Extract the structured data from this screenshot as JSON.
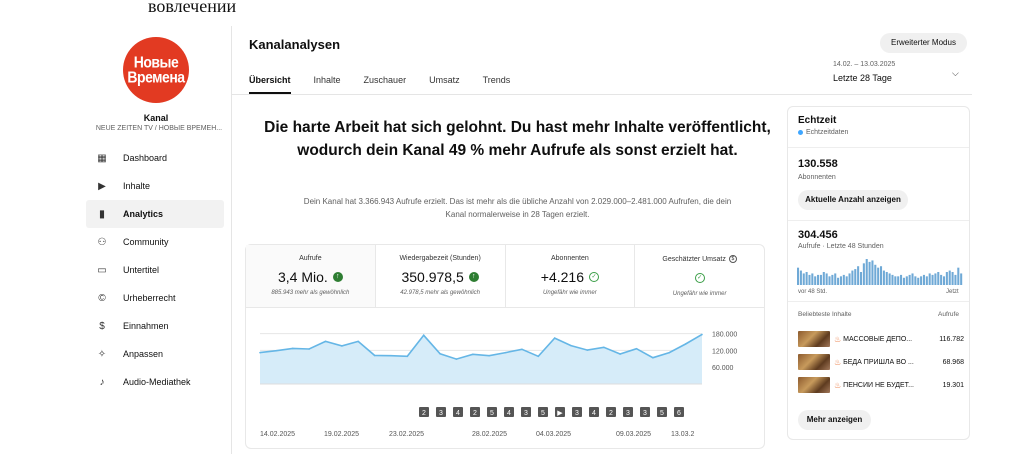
{
  "caption": "вовлечении",
  "channel": {
    "logo_line1": "Новые",
    "logo_line2": "Времена",
    "name": "Kanal",
    "subtitle": "NEUE ZEITEN TV / НОВЫЕ ВРЕМЕН..."
  },
  "sidebar": {
    "items": [
      {
        "label": "Dashboard",
        "icon": "dashboard-icon",
        "glyph": "▦"
      },
      {
        "label": "Inhalte",
        "icon": "content-icon",
        "glyph": "▶"
      },
      {
        "label": "Analytics",
        "icon": "analytics-icon",
        "glyph": "▮"
      },
      {
        "label": "Community",
        "icon": "community-icon",
        "glyph": "⚇"
      },
      {
        "label": "Untertitel",
        "icon": "subtitles-icon",
        "glyph": "▭"
      },
      {
        "label": "Urheberrecht",
        "icon": "copyright-icon",
        "glyph": "©"
      },
      {
        "label": "Einnahmen",
        "icon": "earn-icon",
        "glyph": "$"
      },
      {
        "label": "Anpassen",
        "icon": "customize-icon",
        "glyph": "✧"
      },
      {
        "label": "Audio-Mediathek",
        "icon": "audio-library-icon",
        "glyph": "♪"
      }
    ],
    "active_index": 2
  },
  "header": {
    "title": "Kanalanalysen",
    "tabs": [
      "Übersicht",
      "Inhalte",
      "Zuschauer",
      "Umsatz",
      "Trends"
    ],
    "active_tab": 0,
    "advanced_button": "Erweiterter Modus",
    "date_range": "14.02. – 13.03.2025",
    "date_label": "Letzte 28 Tage"
  },
  "main": {
    "headline": "Die harte Arbeit hat sich gelohnt. Du hast mehr Inhalte veröffentlicht, wodurch dein Kanal 49 % mehr Aufrufe als sonst erzielt hat.",
    "subline": "Dein Kanal hat 3.366.943 Aufrufe erzielt. Das ist mehr als die übliche Anzahl von 2.029.000–2.481.000 Aufrufen, die dein Kanal normalerweise in 28 Tagen erzielt."
  },
  "metrics": [
    {
      "label": "Aufrufe",
      "value": "3,4 Mio.",
      "status": "up",
      "note": "885.943 mehr als gewöhnlich"
    },
    {
      "label": "Wiedergabezeit (Stunden)",
      "value": "350.978,5",
      "status": "up",
      "note": "42.978,5 mehr als gewöhnlich"
    },
    {
      "label": "Abonnenten",
      "value": "+4.216",
      "status": "ok",
      "note": "Ungefähr wie immer"
    },
    {
      "label": "Geschätzter Umsatz",
      "value": "",
      "status": "ok",
      "note": "Ungefähr wie immer"
    }
  ],
  "chart_data": {
    "type": "line",
    "x": [
      "14.02.2025",
      "15.02.2025",
      "16.02.2025",
      "17.02.2025",
      "18.02.2025",
      "19.02.2025",
      "20.02.2025",
      "21.02.2025",
      "22.02.2025",
      "23.02.2025",
      "24.02.2025",
      "25.02.2025",
      "26.02.2025",
      "27.02.2025",
      "28.02.2025",
      "01.03.2025",
      "02.03.2025",
      "03.03.2025",
      "04.03.2025",
      "05.03.2025",
      "06.03.2025",
      "07.03.2025",
      "08.03.2025",
      "09.03.2025",
      "10.03.2025",
      "11.03.2025",
      "12.03.2025",
      "13.03.2025"
    ],
    "values": [
      112000,
      119000,
      127000,
      125000,
      152000,
      136000,
      152000,
      102000,
      101000,
      99000,
      174000,
      108000,
      89000,
      106000,
      101000,
      112000,
      124000,
      99000,
      164000,
      137000,
      121000,
      131000,
      107000,
      126000,
      94000,
      112000,
      143000,
      177000
    ],
    "x_tick_labels": [
      "14.02.2025",
      "19.02.2025",
      "23.02.2025",
      "28.02.2025",
      "04.03.2025",
      "09.03.2025",
      "13.03.2"
    ],
    "y_ticks": [
      60000,
      120000,
      180000
    ],
    "y_tick_labels": [
      "60.000",
      "120.000",
      "180.000"
    ],
    "ylim": [
      0,
      200000
    ],
    "grid": true,
    "markers": [
      "2",
      "3",
      "4",
      "2",
      "5",
      "4",
      "3",
      "5",
      "▶",
      "3",
      "4",
      "2",
      "3",
      "3",
      "5",
      "6"
    ],
    "color": "#65b6e6",
    "fill": "#d6ecf9",
    "title": "",
    "xlabel": "",
    "ylabel": ""
  },
  "realtime": {
    "title": "Echtzeit",
    "live_label": "Echtzeitdaten",
    "subscribers": "130.558",
    "subscribers_label": "Abonnenten",
    "show_button": "Aktuelle Anzahl anzeigen",
    "views": "304.456",
    "views_label": "Aufrufe · Letzte 48 Stunden",
    "bars": [
      12,
      10,
      8,
      9,
      7,
      8,
      6,
      7,
      7,
      9,
      8,
      6,
      7,
      8,
      5,
      6,
      7,
      6,
      8,
      10,
      11,
      13,
      9,
      15,
      18,
      16,
      17,
      14,
      12,
      13,
      10,
      9,
      8,
      7,
      6,
      6,
      7,
      5,
      6,
      7,
      8,
      6,
      5,
      6,
      7,
      6,
      8,
      7,
      8,
      9,
      7,
      6,
      9,
      10,
      9,
      7,
      12,
      8
    ],
    "axis_left": "vor 48 Std.",
    "axis_right": "Jetzt",
    "popular_label": "Beliebteste Inhalte",
    "popular_metric": "Aufrufe",
    "videos": [
      {
        "title": "МАССОВЫЕ ДЕПО...",
        "value": "116.782"
      },
      {
        "title": "БЕДА ПРИШЛА ВО ...",
        "value": "68.968"
      },
      {
        "title": "ПЕНСИЙ НЕ БУДЕТ...",
        "value": "19.301"
      }
    ],
    "more_button": "Mehr anzeigen"
  }
}
